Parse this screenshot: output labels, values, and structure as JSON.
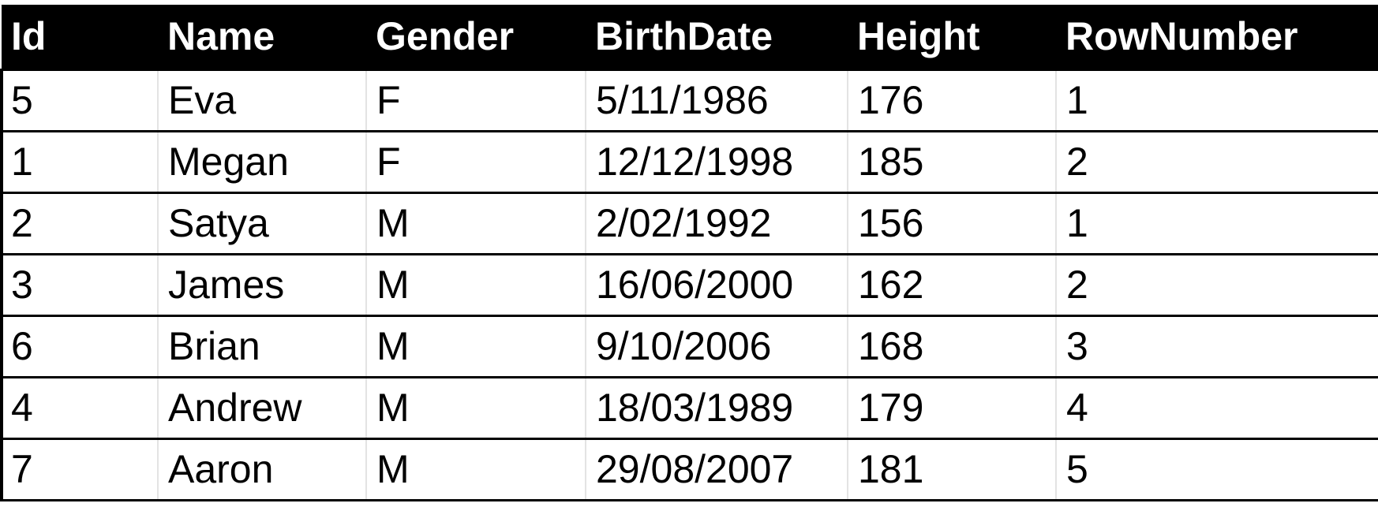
{
  "table": {
    "columns": [
      "Id",
      "Name",
      "Gender",
      "BirthDate",
      "Height",
      "RowNumber"
    ],
    "rows": [
      [
        "5",
        "Eva",
        "F",
        "5/11/1986",
        "176",
        "1"
      ],
      [
        "1",
        "Megan",
        "F",
        "12/12/1998",
        "185",
        "2"
      ],
      [
        "2",
        "Satya",
        "M",
        "2/02/1992",
        "156",
        "1"
      ],
      [
        "3",
        "James",
        "M",
        "16/06/2000",
        "162",
        "2"
      ],
      [
        "6",
        "Brian",
        "M",
        "9/10/2006",
        "168",
        "3"
      ],
      [
        "4",
        "Andrew",
        "M",
        "18/03/1989",
        "179",
        "4"
      ],
      [
        "7",
        "Aaron",
        "M",
        "29/08/2007",
        "181",
        "5"
      ]
    ]
  },
  "colors": {
    "header_background": "#000000",
    "header_text": "#ffffff",
    "row_border": "#000000",
    "grid_line": "#e3e3e3"
  }
}
